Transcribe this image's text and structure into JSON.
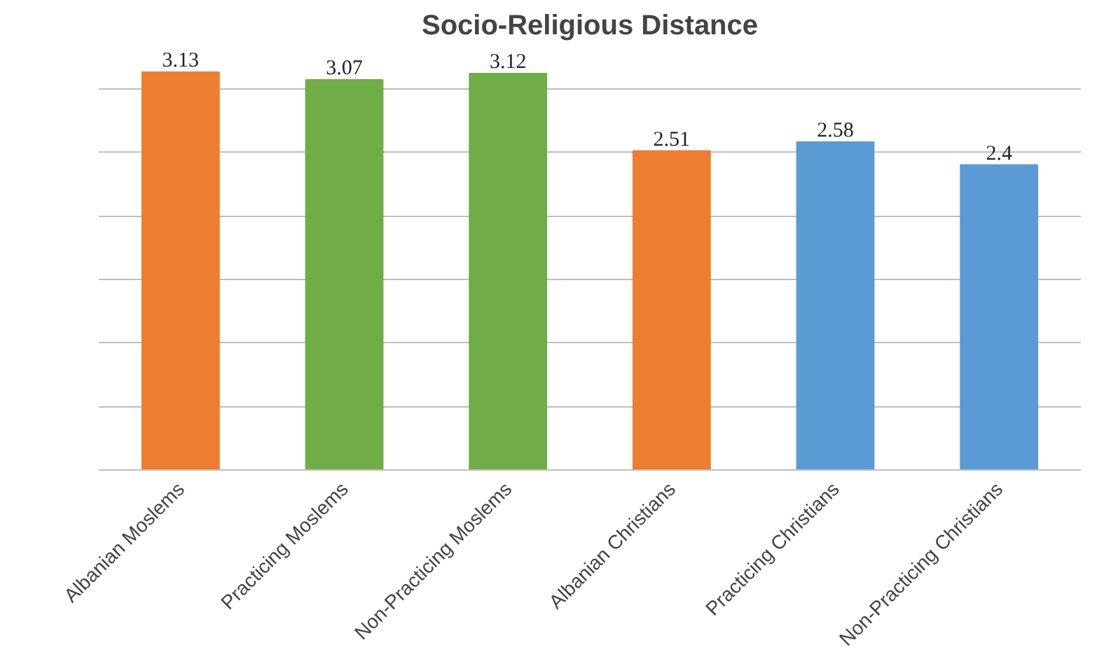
{
  "chart_data": {
    "type": "bar",
    "title": "Socio-Religious Distance",
    "categories": [
      "Albanian Moslems",
      "Practicing Moslems",
      "Non-Practicing Moslems",
      "Albanian Christians",
      "Practicing Christians",
      "Non-Practicing Christians"
    ],
    "values": [
      3.13,
      3.07,
      3.12,
      2.51,
      2.58,
      2.4
    ],
    "colors": [
      "#ed7d31",
      "#70ad47",
      "#70ad47",
      "#ed7d31",
      "#5b9bd5",
      "#5b9bd5"
    ],
    "grid": "y",
    "tick_labels": "x",
    "data_labels": true
  }
}
